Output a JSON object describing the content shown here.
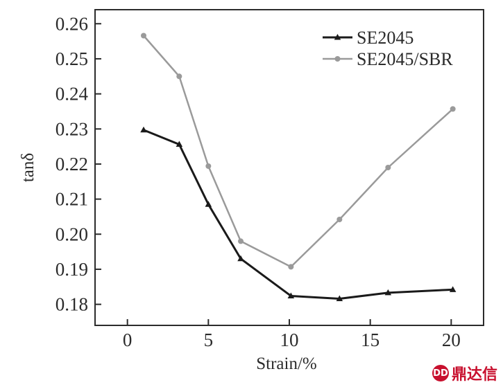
{
  "chart_data": {
    "type": "line",
    "title": "",
    "xlabel": "Strain/%",
    "ylabel": "tanδ",
    "xlim": [
      -2,
      22
    ],
    "ylim": [
      0.174,
      0.264
    ],
    "xticks": [
      0,
      5,
      10,
      15,
      20
    ],
    "yticks": [
      0.18,
      0.19,
      0.2,
      0.21,
      0.22,
      0.23,
      0.24,
      0.25,
      0.26
    ],
    "ytick_labels": [
      "0.18",
      "0.19",
      "0.20",
      "0.21",
      "0.22",
      "0.23",
      "0.24",
      "0.25",
      "0.26"
    ],
    "xtick_labels": [
      "0",
      "5",
      "10",
      "15",
      "20"
    ],
    "grid": false,
    "legend_position": "top-right",
    "series": [
      {
        "name": "SE2045",
        "marker": "triangle",
        "color": "#1a1a1a",
        "x": [
          1,
          3.2,
          5,
          7,
          10.1,
          13.1,
          16.1,
          20.1
        ],
        "y": [
          0.2297,
          0.2256,
          0.2085,
          0.193,
          0.1824,
          0.1816,
          0.1833,
          0.1842
        ]
      },
      {
        "name": "SE2045/SBR",
        "marker": "circle",
        "color": "#9a9a9a",
        "x": [
          1,
          3.2,
          5,
          7,
          10.1,
          13.1,
          16.1,
          20.1
        ],
        "y": [
          0.2566,
          0.245,
          0.2194,
          0.198,
          0.1907,
          0.2042,
          0.219,
          0.2357
        ]
      }
    ]
  },
  "watermark": {
    "logo_text": "DD",
    "text": "鼎达信",
    "color": "#c8102e"
  }
}
